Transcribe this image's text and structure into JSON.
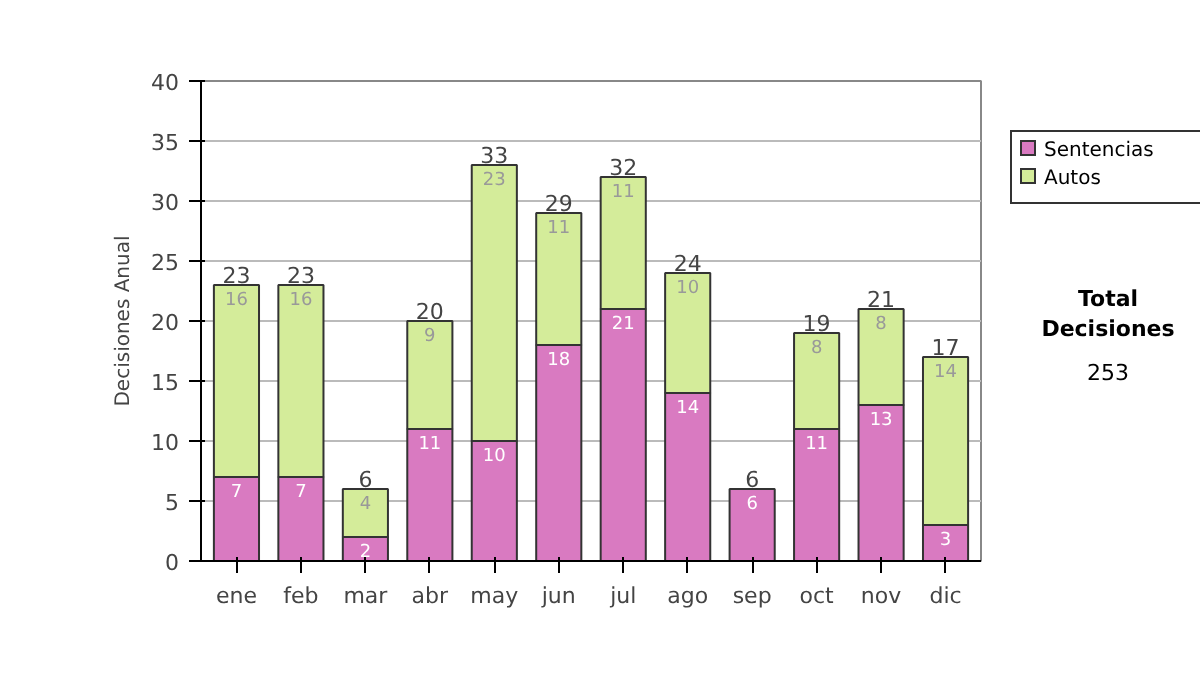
{
  "chart_data": {
    "type": "bar",
    "stacked": true,
    "ylabel": "Decisiones Anual",
    "categories": [
      "ene",
      "feb",
      "mar",
      "abr",
      "may",
      "jun",
      "jul",
      "ago",
      "sep",
      "oct",
      "nov",
      "dic"
    ],
    "series": [
      {
        "name": "Sentencias",
        "color": "#d97ac1",
        "values": [
          7,
          7,
          2,
          11,
          10,
          18,
          21,
          14,
          6,
          11,
          13,
          3
        ],
        "value_labels": [
          "7",
          "7",
          "2",
          "11",
          "10",
          "18",
          "21",
          "14",
          "6",
          "11",
          "13",
          "3"
        ]
      },
      {
        "name": "Autos",
        "color": "#d4ec9a",
        "values": [
          16,
          16,
          4,
          9,
          23,
          11,
          11,
          10,
          0,
          8,
          8,
          14
        ],
        "value_labels": [
          "16",
          "16",
          "4",
          "9",
          "23",
          "11",
          "11",
          "10",
          null,
          "8",
          "8",
          "14"
        ]
      }
    ],
    "totals": [
      "23",
      "23",
      "6",
      "20",
      "33",
      "29",
      "32",
      "24",
      "6",
      "19",
      "21",
      "17"
    ],
    "ylim": [
      0,
      40
    ],
    "yticks": [
      0,
      5,
      10,
      15,
      20,
      25,
      30,
      35,
      40
    ],
    "grid": "y",
    "legend": "right",
    "annotations": [
      "Total Decisiones",
      "253"
    ]
  }
}
